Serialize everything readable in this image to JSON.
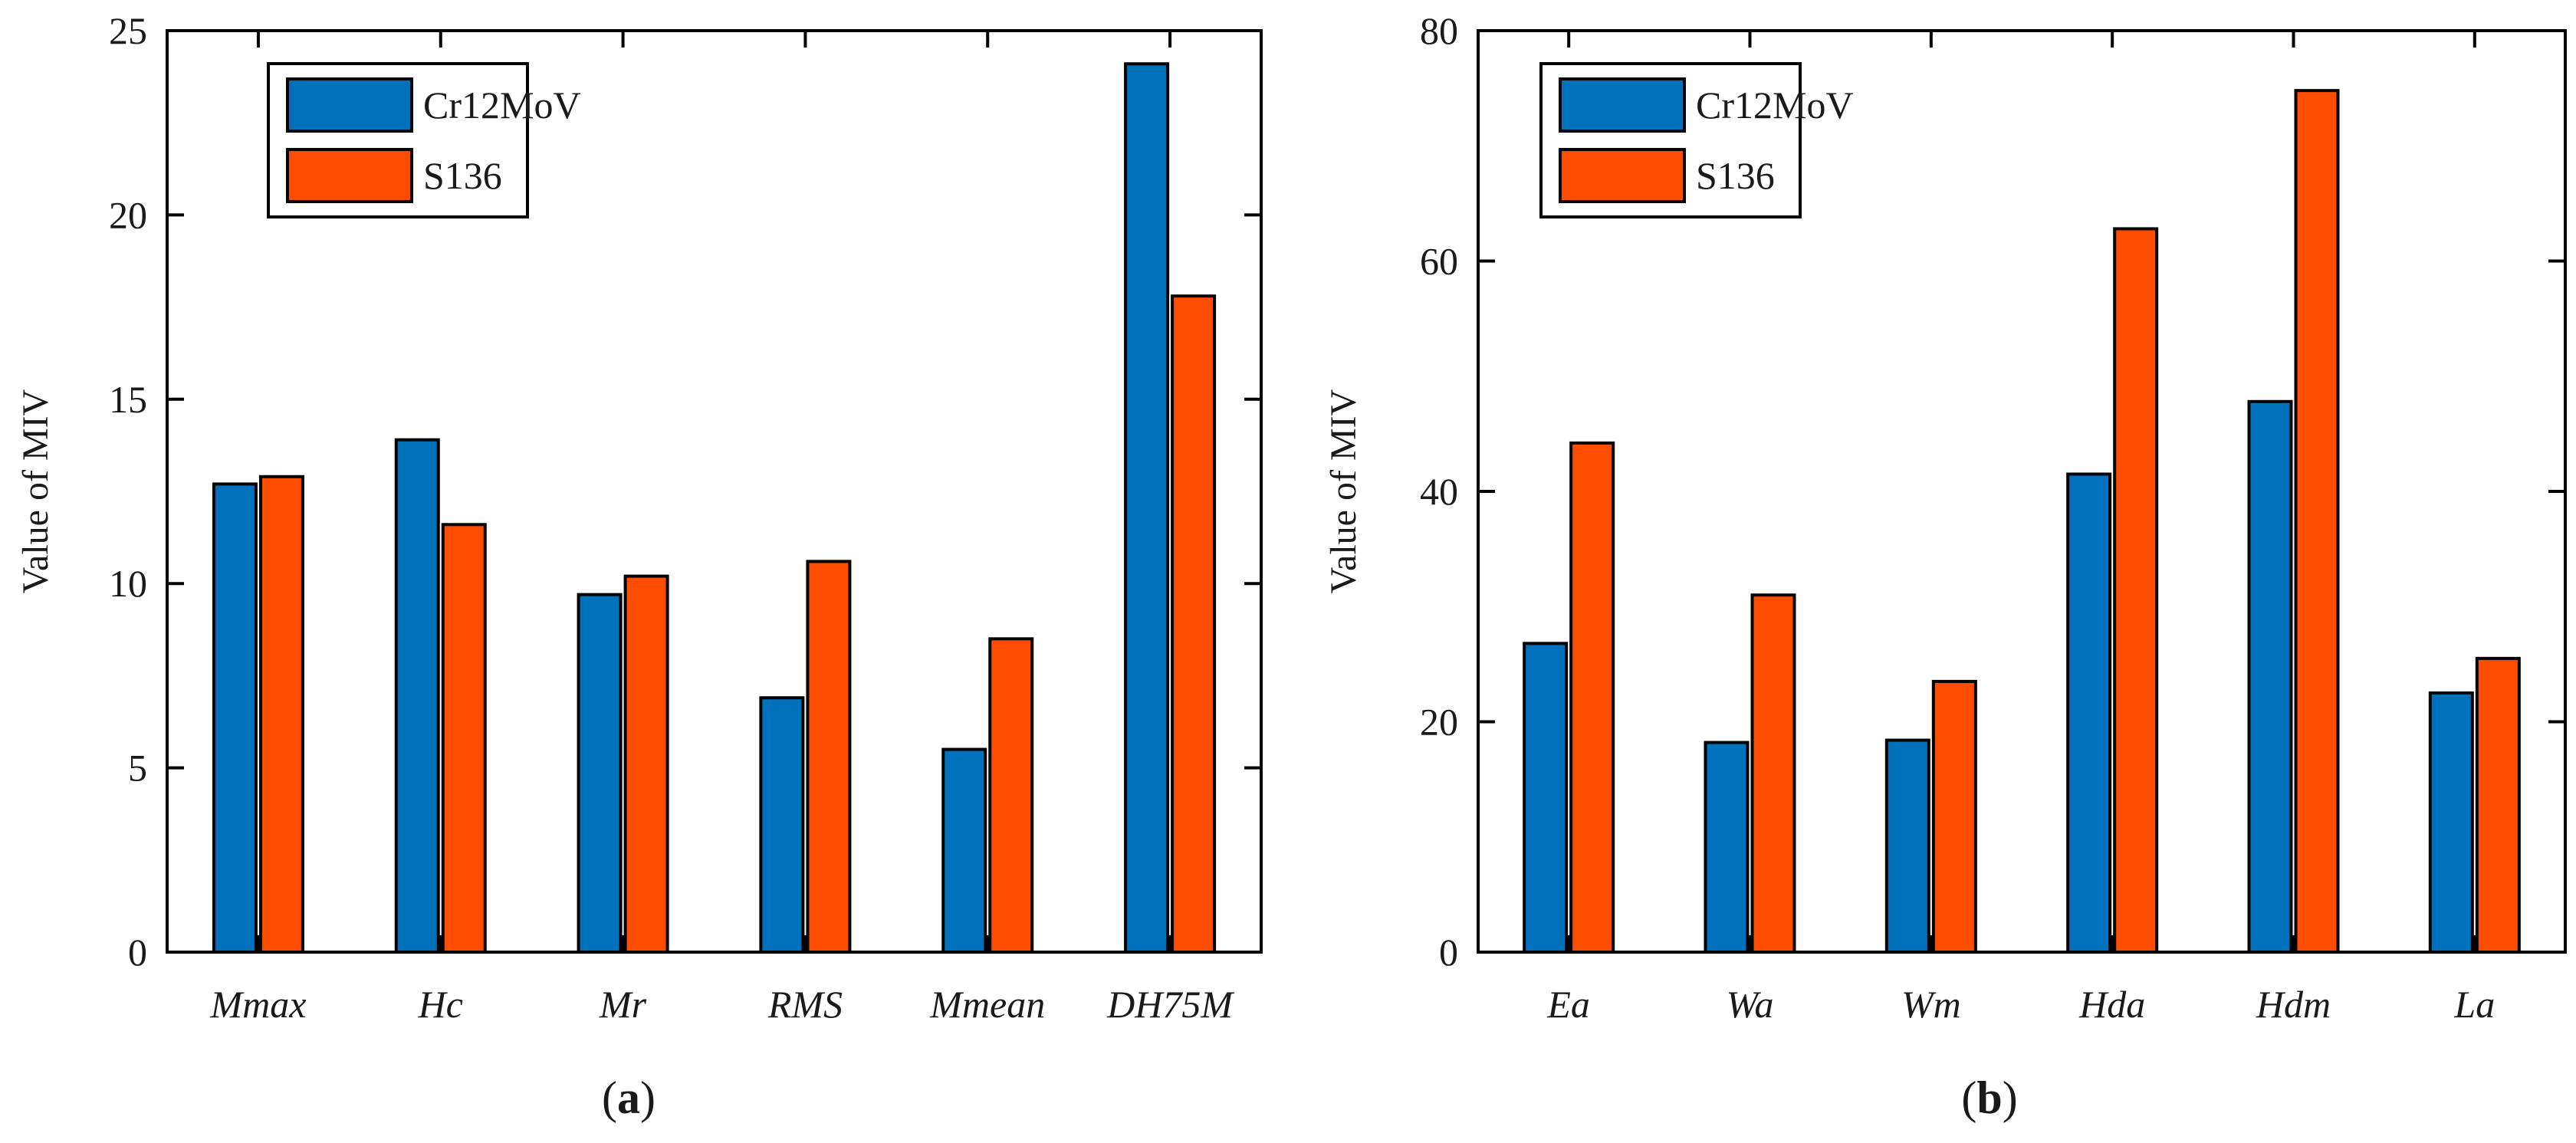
{
  "chart_data": [
    {
      "type": "bar",
      "panel_label": "a",
      "ylabel": "Value of MIV",
      "ylim": [
        0,
        25
      ],
      "yticks": [
        0,
        5,
        10,
        15,
        20,
        25
      ],
      "categories": [
        "Mmax",
        "Hc",
        "Mr",
        "RMS",
        "Mmean",
        "DH75M"
      ],
      "series": [
        {
          "name": "Cr12MoV",
          "values": [
            12.7,
            13.9,
            9.7,
            6.9,
            5.5,
            24.1
          ]
        },
        {
          "name": "S136",
          "values": [
            12.9,
            11.6,
            10.2,
            10.6,
            8.5,
            17.8
          ]
        }
      ],
      "legend": "top-left",
      "grid": false
    },
    {
      "type": "bar",
      "panel_label": "b",
      "ylabel": "Value of MIV",
      "ylim": [
        0,
        80
      ],
      "yticks": [
        0,
        20,
        40,
        60,
        80
      ],
      "categories": [
        "Ea",
        "Wa",
        "Wm",
        "Hda",
        "Hdm",
        "La"
      ],
      "series": [
        {
          "name": "Cr12MoV",
          "values": [
            26.8,
            18.2,
            18.4,
            41.5,
            47.8,
            22.5
          ]
        },
        {
          "name": "S136",
          "values": [
            44.2,
            31.0,
            23.5,
            62.8,
            74.8,
            25.5
          ]
        }
      ],
      "legend": "top-left",
      "grid": false
    }
  ],
  "colors": {
    "series": [
      "#0072BD",
      "#FF4D00"
    ],
    "axis": "#000000"
  }
}
